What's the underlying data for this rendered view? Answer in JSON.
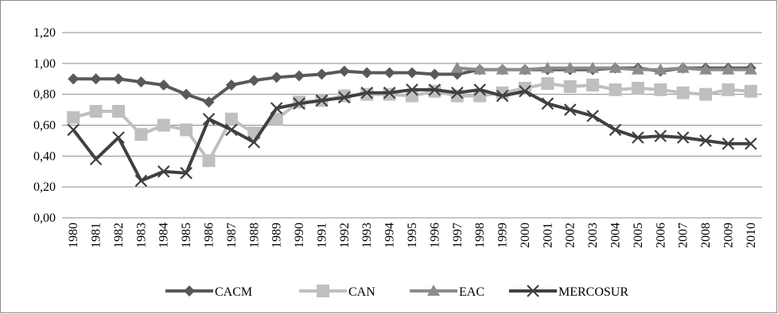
{
  "chart_data": {
    "type": "line",
    "title": "",
    "xlabel": "",
    "ylabel": "",
    "ylim": [
      0,
      1.2
    ],
    "ytick_values": [
      0,
      0.2,
      0.4,
      0.6,
      0.8,
      1.0,
      1.2
    ],
    "ytick_labels": [
      "0,00",
      "0,20",
      "0,40",
      "0,60",
      "0,80",
      "1,00",
      "1,20"
    ],
    "grid": "horizontal",
    "legend_position": "bottom",
    "x": [
      "1980",
      "1981",
      "1982",
      "1983",
      "1984",
      "1985",
      "1986",
      "1987",
      "1988",
      "1989",
      "1990",
      "1991",
      "1992",
      "1993",
      "1994",
      "1995",
      "1996",
      "1997",
      "1998",
      "1999",
      "2000",
      "2001",
      "2002",
      "2003",
      "2004",
      "2005",
      "2006",
      "2007",
      "2008",
      "2009",
      "2010"
    ],
    "series": [
      {
        "name": "CACM",
        "color": "#595959",
        "marker": "diamond",
        "values": [
          0.9,
          0.9,
          0.9,
          0.88,
          0.86,
          0.8,
          0.75,
          0.86,
          0.89,
          0.91,
          0.92,
          0.93,
          0.95,
          0.94,
          0.94,
          0.94,
          0.93,
          0.93,
          0.96,
          0.96,
          0.96,
          0.96,
          0.96,
          0.96,
          0.97,
          0.97,
          0.95,
          0.97,
          0.97,
          0.97,
          0.97
        ]
      },
      {
        "name": "CAN",
        "color": "#bfbfbf",
        "marker": "square",
        "values": [
          0.65,
          0.69,
          0.69,
          0.54,
          0.6,
          0.57,
          0.37,
          0.64,
          0.55,
          0.64,
          0.75,
          0.76,
          0.79,
          0.8,
          0.8,
          0.79,
          0.82,
          0.79,
          0.79,
          0.81,
          0.84,
          0.87,
          0.85,
          0.86,
          0.83,
          0.84,
          0.83,
          0.81,
          0.8,
          0.83,
          0.82
        ]
      },
      {
        "name": "EAC",
        "color": "#8c8c8c",
        "marker": "triangle",
        "values": [
          null,
          null,
          null,
          null,
          null,
          null,
          null,
          null,
          null,
          null,
          null,
          null,
          null,
          null,
          null,
          null,
          null,
          0.97,
          0.96,
          0.96,
          0.96,
          0.97,
          0.97,
          0.97,
          0.97,
          0.96,
          0.96,
          0.97,
          0.96,
          0.96,
          0.96
        ]
      },
      {
        "name": "MERCOSUR",
        "color": "#404040",
        "marker": "x",
        "values": [
          0.57,
          0.38,
          0.52,
          0.24,
          0.3,
          0.29,
          0.64,
          0.57,
          0.49,
          0.71,
          0.74,
          0.76,
          0.78,
          0.81,
          0.81,
          0.83,
          0.83,
          0.81,
          0.83,
          0.79,
          0.82,
          0.74,
          0.7,
          0.66,
          0.57,
          0.52,
          0.53,
          0.52,
          0.5,
          0.48,
          0.48
        ]
      }
    ]
  }
}
